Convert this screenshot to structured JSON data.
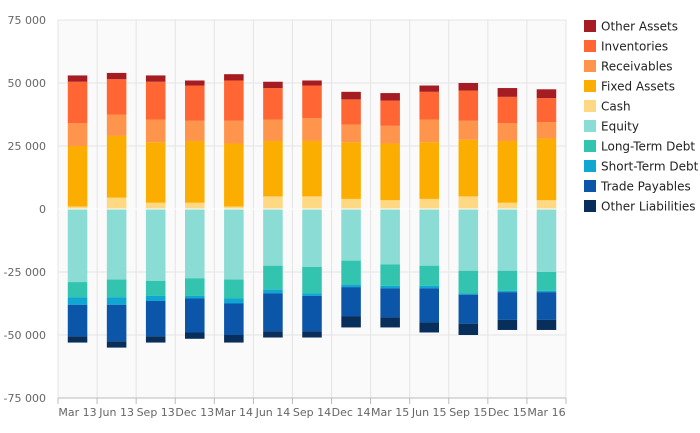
{
  "chart_data": {
    "type": "bar",
    "stacked": true,
    "categories": [
      "Mar 13",
      "Jun 13",
      "Sep 13",
      "Dec 13",
      "Mar 14",
      "Jun 14",
      "Sep 14",
      "Dec 14",
      "Mar 15",
      "Jun 15",
      "Sep 15",
      "Dec 15",
      "Mar 16"
    ],
    "ylim": [
      -75000,
      75000
    ],
    "yticks": [
      75000,
      50000,
      25000,
      0,
      -25000,
      -50000,
      -75000
    ],
    "ytick_labels": [
      "75 000",
      "50 000",
      "25 000",
      "0",
      "-25 000",
      "-50 000",
      "-75 000"
    ],
    "grid": true,
    "legend_position": "right",
    "series": [
      {
        "name": "Other Assets",
        "side": "positive",
        "color": "#a51d23",
        "values": [
          2500,
          2500,
          2500,
          2000,
          2500,
          2500,
          2000,
          3000,
          3000,
          2500,
          3000,
          3500,
          3500
        ]
      },
      {
        "name": "Inventories",
        "side": "positive",
        "color": "#ff6633",
        "values": [
          16500,
          14000,
          15000,
          14000,
          16000,
          12500,
          13000,
          10000,
          10000,
          11000,
          12000,
          10500,
          9500
        ]
      },
      {
        "name": "Receivables",
        "side": "positive",
        "color": "#ff944d",
        "values": [
          9000,
          8500,
          9000,
          8000,
          9000,
          8500,
          9000,
          7000,
          7000,
          9000,
          7500,
          7000,
          6500
        ]
      },
      {
        "name": "Fixed Assets",
        "side": "positive",
        "color": "#fbae00",
        "values": [
          24000,
          24500,
          24000,
          24500,
          25000,
          22000,
          22000,
          22500,
          22500,
          22500,
          22500,
          24500,
          24500
        ]
      },
      {
        "name": "Cash",
        "side": "positive",
        "color": "#fed883",
        "values": [
          1000,
          4500,
          2500,
          2500,
          1000,
          5000,
          5000,
          4000,
          3500,
          4000,
          5000,
          2500,
          3500
        ]
      },
      {
        "name": "Equity",
        "side": "negative",
        "color": "#8bdcd4",
        "values": [
          29000,
          28000,
          28500,
          27500,
          28000,
          22500,
          23000,
          20500,
          22000,
          22500,
          24500,
          24500,
          25000
        ]
      },
      {
        "name": "Long-Term Debt",
        "side": "negative",
        "color": "#33c4b0",
        "values": [
          6000,
          7000,
          6000,
          7000,
          7500,
          9500,
          10500,
          9500,
          8500,
          8000,
          9000,
          8000,
          7500
        ]
      },
      {
        "name": "Short-Term Debt",
        "side": "negative",
        "color": "#0fa7d1",
        "values": [
          3000,
          3000,
          2000,
          1000,
          2000,
          1500,
          1000,
          1000,
          1000,
          1000,
          500,
          500,
          500
        ]
      },
      {
        "name": "Trade Payables",
        "side": "negative",
        "color": "#0b56a8",
        "values": [
          12500,
          14500,
          14000,
          13500,
          12500,
          15000,
          14000,
          11500,
          11500,
          13500,
          11500,
          11000,
          11000
        ]
      },
      {
        "name": "Other Liabilities",
        "side": "negative",
        "color": "#082f5c",
        "values": [
          2500,
          2500,
          2500,
          2500,
          3000,
          2500,
          2500,
          4500,
          4000,
          4000,
          4500,
          4000,
          4000
        ]
      }
    ]
  }
}
